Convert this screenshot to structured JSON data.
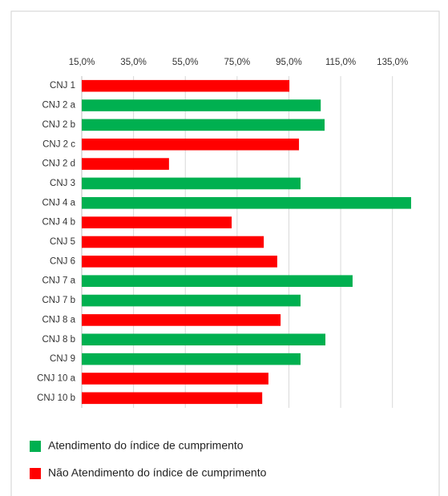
{
  "chart_data": {
    "type": "barh",
    "categories": [
      "CNJ 1",
      "CNJ 2 a",
      "CNJ 2 b",
      "CNJ 2 c",
      "CNJ 2 d",
      "CNJ 3",
      "CNJ 4 a",
      "CNJ 4 b",
      "CNJ 5",
      "CNJ 6",
      "CNJ 7 a",
      "CNJ 7 b",
      "CNJ 8 a",
      "CNJ 8 b",
      "CNJ 9",
      "CNJ 10 a",
      "CNJ 10 b"
    ],
    "values": [
      95.2,
      107.3,
      108.8,
      98.9,
      48.7,
      99.5,
      142.2,
      72.9,
      85.3,
      90.5,
      119.6,
      99.5,
      91.8,
      109.1,
      99.5,
      87.1,
      84.7
    ],
    "colors": [
      "#ff0000",
      "#00b050",
      "#00b050",
      "#ff0000",
      "#ff0000",
      "#00b050",
      "#00b050",
      "#ff0000",
      "#ff0000",
      "#ff0000",
      "#00b050",
      "#00b050",
      "#ff0000",
      "#00b050",
      "#00b050",
      "#ff0000",
      "#ff0000"
    ],
    "xlim": [
      15,
      145
    ],
    "xticks": [
      {
        "value": 15,
        "label": "15,0%"
      },
      {
        "value": 35,
        "label": "35,0%"
      },
      {
        "value": 55,
        "label": "55,0%"
      },
      {
        "value": 75,
        "label": "75,0%"
      },
      {
        "value": 95,
        "label": "95,0%"
      },
      {
        "value": 115,
        "label": "115,0%"
      },
      {
        "value": 135,
        "label": "135,0%"
      }
    ],
    "grid": true,
    "legend": [
      {
        "label": "Atendimento do índice de cumprimento",
        "color": "#00b050"
      },
      {
        "label": "Não Atendimento do índice de cumprimento",
        "color": "#ff0000"
      }
    ]
  }
}
